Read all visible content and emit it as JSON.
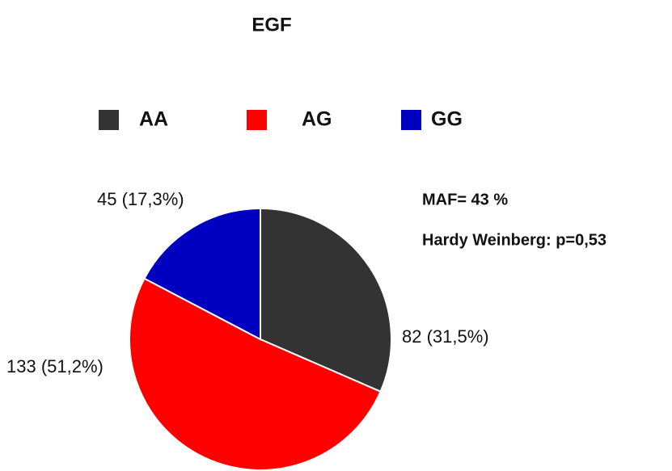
{
  "chart_data": {
    "type": "pie",
    "title": "EGF",
    "categories": [
      "AA",
      "AG",
      "GG"
    ],
    "values": [
      82,
      133,
      45
    ],
    "value_labels": [
      "82 (31,5%)",
      "133 (51,2%)",
      "45 (17,3%)"
    ],
    "colors": [
      "#333333",
      "#ff0000",
      "#0000c0"
    ],
    "annotations": [
      "MAF= 43 %",
      "Hardy Weinberg: p=0,53"
    ],
    "legend": "top"
  }
}
